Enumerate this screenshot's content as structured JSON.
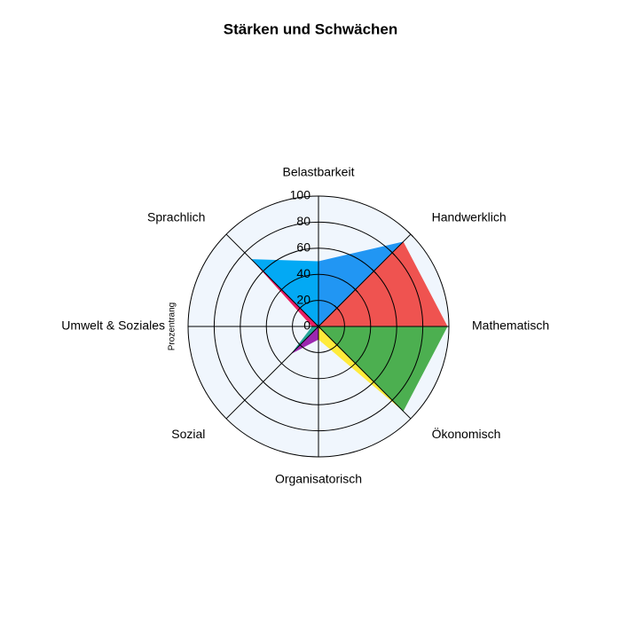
{
  "chart_data": {
    "type": "polar",
    "title": "Stärken und Schwächen",
    "ylabel": "Prozentrang",
    "categories": [
      "Belastbarkeit",
      "Handwerklich",
      "Mathematisch",
      "Ökonomisch",
      "Organisatorisch",
      "Sozial",
      "Umwelt & Soziales",
      "Sprachlich"
    ],
    "values": [
      50,
      92,
      99,
      92,
      10,
      30,
      5,
      73
    ],
    "colors": [
      "#2196f3",
      "#ef5350",
      "#4caf50",
      "#ffeb3b",
      "#9c27b0",
      "#26a69a",
      "#e91e63",
      "#03a9f4"
    ],
    "ylim": [
      0,
      100
    ],
    "yticks": [
      0,
      20,
      40,
      60,
      80,
      100
    ],
    "grid": true
  }
}
